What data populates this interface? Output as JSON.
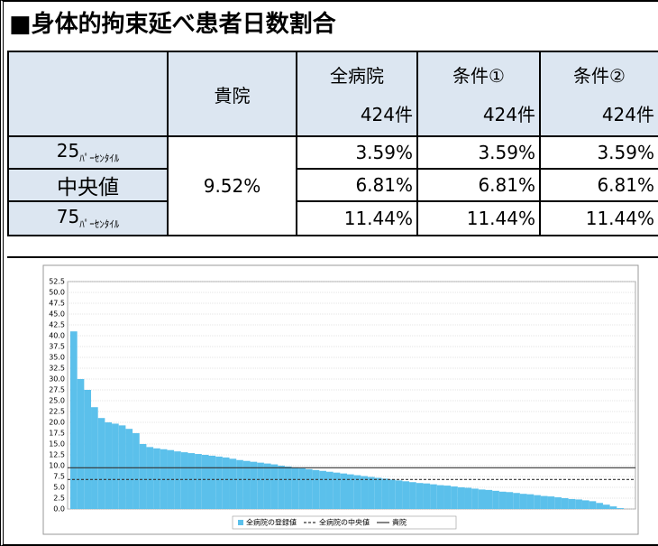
{
  "title": "■身体的拘束延べ患者日数割合",
  "table": {
    "own_header": "貴院",
    "group_headers": [
      {
        "name": "全病院",
        "count": "424件"
      },
      {
        "name": "条件①",
        "count": "424件"
      },
      {
        "name": "条件②",
        "count": "424件"
      }
    ],
    "own_value": "9.52%",
    "rows": [
      {
        "label": "25",
        "label_sub": "ﾊﾟｰｾﾝﾀｲﾙ",
        "values": [
          "3.59%",
          "3.59%",
          "3.59%"
        ]
      },
      {
        "label": "中央値",
        "values": [
          "6.81%",
          "6.81%",
          "6.81%"
        ]
      },
      {
        "label": "75",
        "label_sub": "ﾊﾟｰｾﾝﾀｲﾙ",
        "values": [
          "11.44%",
          "11.44%",
          "11.44%"
        ]
      }
    ]
  },
  "chart_data": {
    "type": "bar",
    "series": [
      {
        "name": "全病院の登録値",
        "color": "#5bc0eb",
        "values": [
          41,
          30,
          27.5,
          23.5,
          21,
          20,
          19.7,
          19.3,
          18.5,
          17.5,
          15,
          14.3,
          14,
          13.8,
          13.6,
          13.3,
          13.1,
          12.9,
          12.7,
          12.5,
          12.3,
          12.1,
          11.9,
          11.6,
          11.3,
          11.1,
          10.9,
          10.7,
          10.5,
          10.3,
          10.0,
          9.8,
          9.6,
          9.4,
          9.2,
          9.0,
          8.8,
          8.6,
          8.4,
          8.2,
          8.0,
          7.8,
          7.6,
          7.4,
          7.2,
          7.0,
          6.8,
          6.6,
          6.4,
          6.2,
          6.0,
          5.9,
          5.7,
          5.5,
          5.4,
          5.2,
          5.0,
          4.9,
          4.7,
          4.5,
          4.4,
          4.2,
          4.0,
          3.9,
          3.7,
          3.5,
          3.4,
          3.2,
          3.0,
          2.9,
          2.7,
          2.5,
          2.3,
          2.2,
          2.0,
          1.8,
          1.4,
          1.0,
          0.6,
          0.2
        ]
      }
    ],
    "hlines": [
      {
        "name": "全病院の中央値",
        "value": 6.81,
        "color": "#333333",
        "dash": "3,2"
      },
      {
        "name": "貴院",
        "value": 9.52,
        "color": "#333333",
        "dash": "none"
      }
    ],
    "ylim": [
      0,
      52.5
    ],
    "yticks": [
      {
        "value": 0,
        "label": "0.0"
      },
      2.5,
      {
        "value": 5,
        "label": "5.0"
      },
      7.5,
      {
        "value": 10,
        "label": "10.0"
      },
      12.5,
      {
        "value": 15,
        "label": "15.0"
      },
      17.5,
      {
        "value": 20,
        "label": "20.0"
      },
      22.5,
      {
        "value": 25,
        "label": "25.0"
      },
      27.5,
      {
        "value": 30,
        "label": "30.0"
      },
      32.5,
      {
        "value": 35,
        "label": "35.0"
      },
      37.5,
      {
        "value": 40,
        "label": "40.0"
      },
      42.5,
      {
        "value": 45,
        "label": "45.0"
      },
      47.5,
      {
        "value": 50,
        "label": "50.0"
      },
      52.5
    ],
    "grid": true
  }
}
